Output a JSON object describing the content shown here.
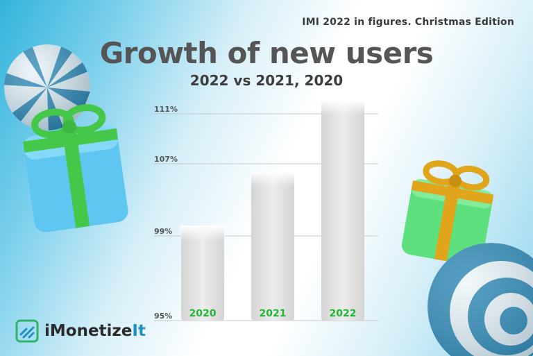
{
  "supertitle": "IMI 2022 in figures. Christmas Edition",
  "brand": {
    "name_main": "iMonetize",
    "name_accent": "It"
  },
  "decorations": [
    "ornament-ball-icon",
    "gift-box-icon",
    "gift-box-icon",
    "ornament-ball-icon"
  ],
  "colors": {
    "bar_label": "#22b534",
    "bar_fill": "#e6e6e6",
    "title": "#555555",
    "brand_accent": "#1f90c7",
    "gift_left_box": "#5ec6f0",
    "gift_left_ribbon": "#45c84a",
    "gift_right_box": "#5ee07e",
    "gift_right_ribbon": "#e0a51a"
  },
  "chart_data": {
    "type": "bar",
    "title": "Growth of new users",
    "subtitle": "2022 vs 2021, 2020",
    "categories": [
      "2020",
      "2021",
      "2022"
    ],
    "values": [
      100,
      106,
      112
    ],
    "yticks": [
      95,
      99,
      107,
      111
    ],
    "ytick_labels": [
      "95%",
      "99%",
      "107%",
      "111%"
    ],
    "ylim": [
      95,
      112
    ],
    "xlabel": "",
    "ylabel": "",
    "grid": true,
    "legend": "none"
  }
}
